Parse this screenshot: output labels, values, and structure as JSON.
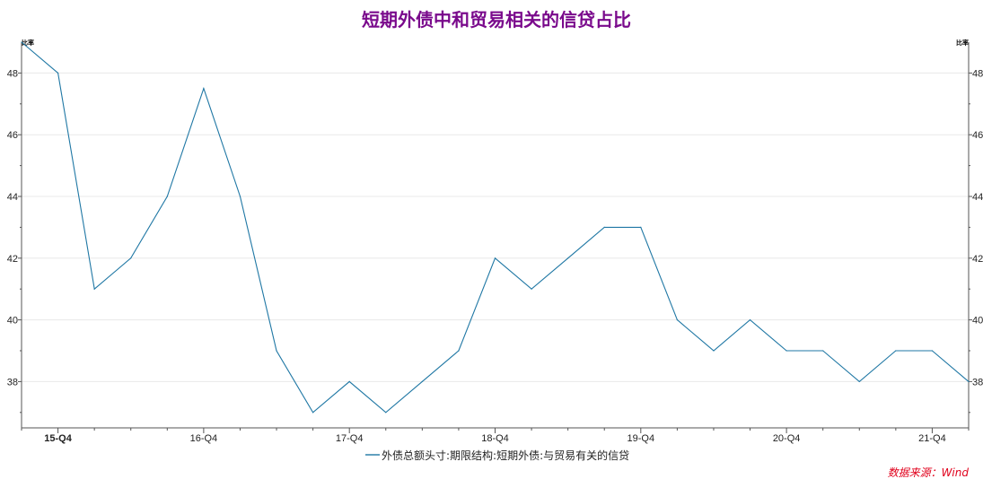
{
  "chart_data": {
    "type": "line",
    "title": "短期外债中和贸易相关的信贷占比",
    "ylabel_left": "比率",
    "ylabel_right": "比率",
    "ylim": [
      36.5,
      49.0
    ],
    "yticks": [
      38,
      40,
      42,
      44,
      46,
      48
    ],
    "x": [
      "15-Q3",
      "15-Q4",
      "16-Q1",
      "16-Q2",
      "16-Q3",
      "16-Q4",
      "17-Q1",
      "17-Q2",
      "17-Q3",
      "17-Q4",
      "18-Q1",
      "18-Q2",
      "18-Q3",
      "18-Q4",
      "19-Q1",
      "19-Q2",
      "19-Q3",
      "19-Q4",
      "20-Q1",
      "20-Q2",
      "20-Q3",
      "20-Q4",
      "21-Q1",
      "21-Q2",
      "21-Q3",
      "21-Q4",
      "22-Q1"
    ],
    "x_tick_labels": [
      "15-Q4",
      "16-Q4",
      "17-Q4",
      "18-Q4",
      "19-Q4",
      "20-Q4",
      "21-Q4"
    ],
    "series": [
      {
        "name": "外债总额头寸:期限结构:短期外债:与贸易有关的信贷",
        "color": "#1f77a4",
        "values": [
          49,
          48,
          41,
          42,
          44,
          47.5,
          44,
          39,
          37,
          38,
          37,
          38,
          39,
          42,
          41,
          42,
          43,
          43,
          40,
          39,
          40,
          39,
          39,
          38,
          39,
          39,
          38
        ]
      }
    ],
    "grid": true,
    "legend_position": "bottom-center",
    "source": "数据来源：Wind",
    "colors": {
      "title": "#7a0a8c",
      "source": "#e0001b",
      "line": "#1f77a4",
      "grid": "#e8e8e8",
      "axis": "#555555"
    }
  }
}
